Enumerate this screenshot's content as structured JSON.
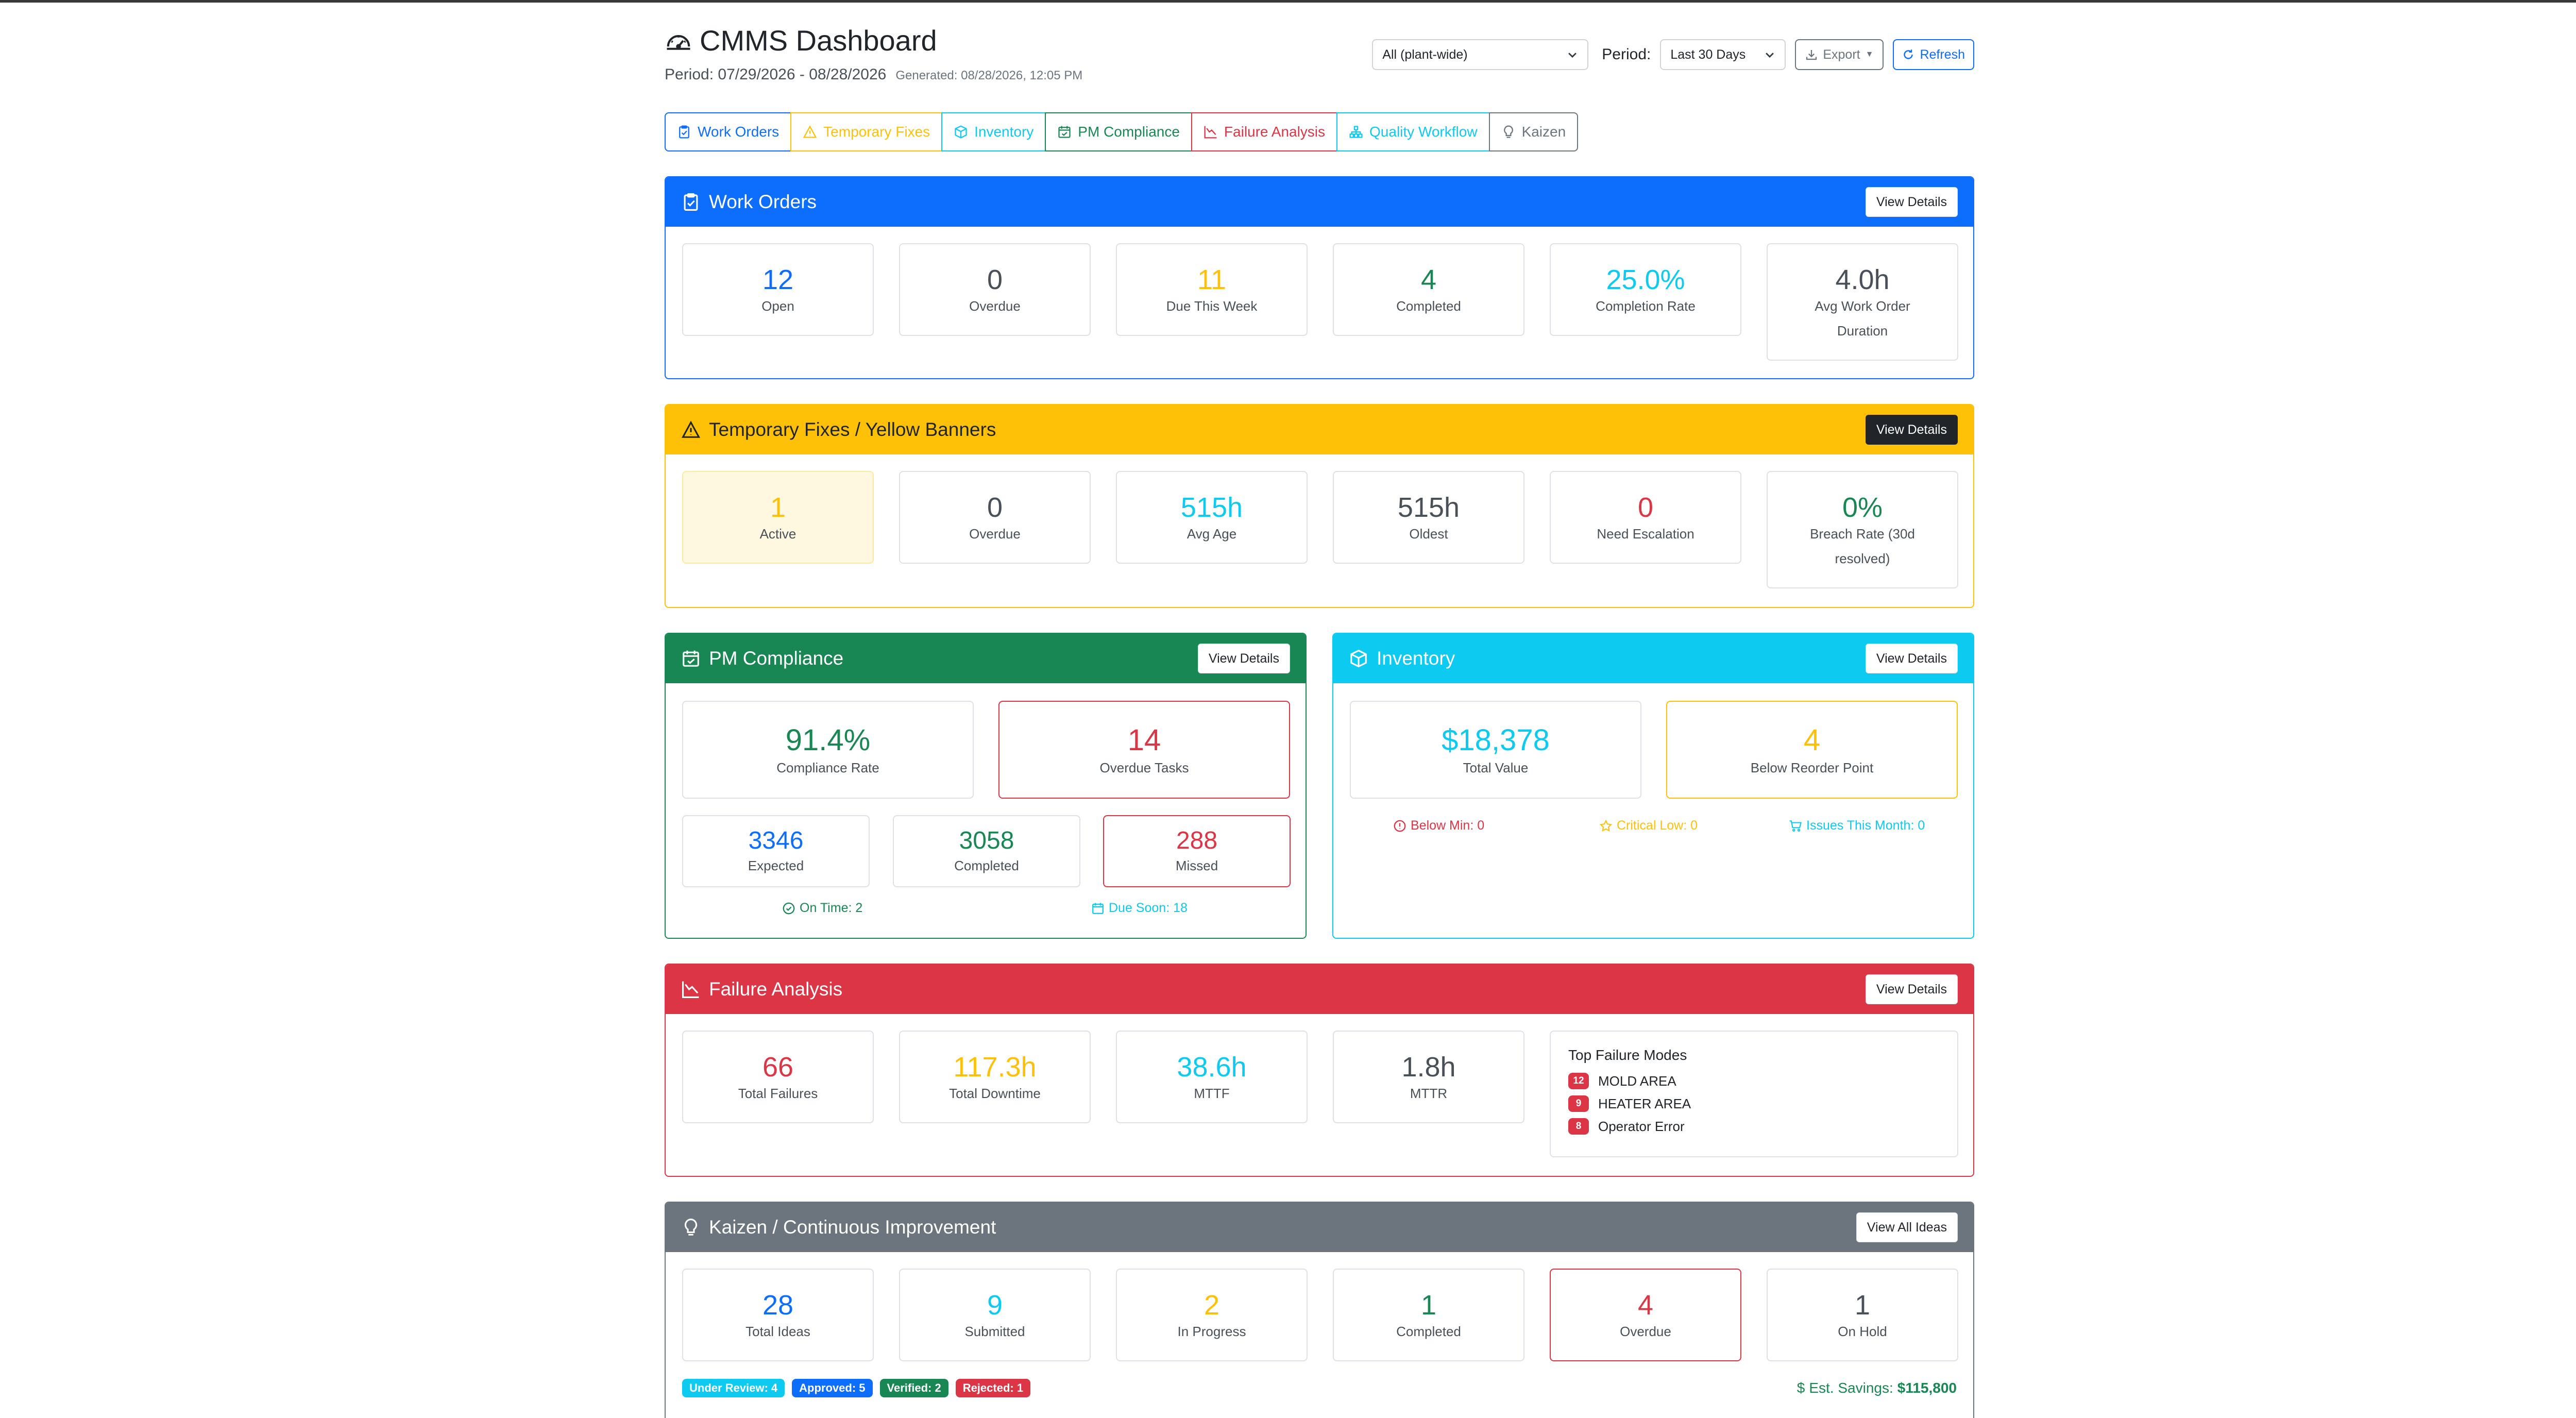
{
  "header": {
    "title": "CMMS Dashboard",
    "period": "Period: 07/29/2026 - 08/28/2026",
    "generated": "Generated: 08/28/2026, 12:05 PM",
    "scope_select": "All (plant-wide)",
    "period_label": "Period:",
    "period_select": "Last 30 Days",
    "export_label": "Export",
    "refresh_label": "Refresh"
  },
  "tabs": [
    {
      "label": "Work Orders",
      "color": "#0d6efd"
    },
    {
      "label": "Temporary Fixes",
      "color": "#ffc107"
    },
    {
      "label": "Inventory",
      "color": "#0dcaf0"
    },
    {
      "label": "PM Compliance",
      "color": "#198754"
    },
    {
      "label": "Failure Analysis",
      "color": "#dc3545"
    },
    {
      "label": "Quality Workflow",
      "color": "#0dcaf0"
    },
    {
      "label": "Kaizen",
      "color": "#6c757d"
    }
  ],
  "work_orders": {
    "title": "Work Orders",
    "button": "View Details",
    "color": "#0d6efd",
    "stats": [
      {
        "value": "12",
        "label": "Open"
      },
      {
        "value": "0",
        "label": "Overdue"
      },
      {
        "value": "11",
        "label": "Due This Week"
      },
      {
        "value": "4",
        "label": "Completed"
      },
      {
        "value": "25.0%",
        "label": "Completion Rate"
      },
      {
        "value": "4.0h",
        "label": "Avg Work Order Duration"
      }
    ]
  },
  "temp_fixes": {
    "title": "Temporary Fixes / Yellow Banners",
    "button": "View Details",
    "color": "#ffc107",
    "stats": [
      {
        "value": "1",
        "label": "Active"
      },
      {
        "value": "0",
        "label": "Overdue"
      },
      {
        "value": "515h",
        "label": "Avg Age"
      },
      {
        "value": "515h",
        "label": "Oldest"
      },
      {
        "value": "0",
        "label": "Need Escalation"
      },
      {
        "value": "0%",
        "label": "Breach Rate (30d resolved)"
      }
    ]
  },
  "pm": {
    "title": "PM Compliance",
    "button": "View Details",
    "color": "#198754",
    "compliance_rate": {
      "value": "91.4%",
      "label": "Compliance Rate"
    },
    "overdue_tasks": {
      "value": "14",
      "label": "Overdue Tasks"
    },
    "expected": {
      "value": "3346",
      "label": "Expected"
    },
    "completed": {
      "value": "3058",
      "label": "Completed"
    },
    "missed": {
      "value": "288",
      "label": "Missed"
    },
    "on_time": "On Time: 2",
    "due_soon": "Due Soon: 18"
  },
  "inventory": {
    "title": "Inventory",
    "button": "View Details",
    "color": "#0dcaf0",
    "total_value": {
      "value": "$18,378",
      "label": "Total Value"
    },
    "below_reorder": {
      "value": "4",
      "label": "Below Reorder Point"
    },
    "below_min": "Below Min: 0",
    "critical_low": "Critical Low: 0",
    "issues_month": "Issues This Month: 0"
  },
  "failure": {
    "title": "Failure Analysis",
    "button": "View Details",
    "color": "#dc3545",
    "stats": [
      {
        "value": "66",
        "label": "Total Failures"
      },
      {
        "value": "117.3h",
        "label": "Total Downtime"
      },
      {
        "value": "38.6h",
        "label": "MTTF"
      },
      {
        "value": "1.8h",
        "label": "MTTR"
      }
    ],
    "top_modes_title": "Top Failure Modes",
    "top_modes": [
      {
        "count": "12",
        "name": "MOLD AREA"
      },
      {
        "count": "9",
        "name": "HEATER AREA"
      },
      {
        "count": "8",
        "name": "Operator Error"
      }
    ]
  },
  "kaizen": {
    "title": "Kaizen / Continuous Improvement",
    "button": "View All Ideas",
    "color": "#6c757d",
    "stats": [
      {
        "value": "28",
        "label": "Total Ideas"
      },
      {
        "value": "9",
        "label": "Submitted"
      },
      {
        "value": "2",
        "label": "In Progress"
      },
      {
        "value": "1",
        "label": "Completed"
      },
      {
        "value": "4",
        "label": "Overdue"
      },
      {
        "value": "1",
        "label": "On Hold"
      }
    ],
    "badges": [
      {
        "label": "Under Review: 4",
        "color": "#0dcaf0"
      },
      {
        "label": "Approved: 5",
        "color": "#0d6efd"
      },
      {
        "label": "Verified: 2",
        "color": "#198754"
      },
      {
        "label": "Rejected: 1",
        "color": "#dc3545"
      }
    ],
    "savings_label": "Est. Savings:",
    "savings_value": "$115,800"
  }
}
